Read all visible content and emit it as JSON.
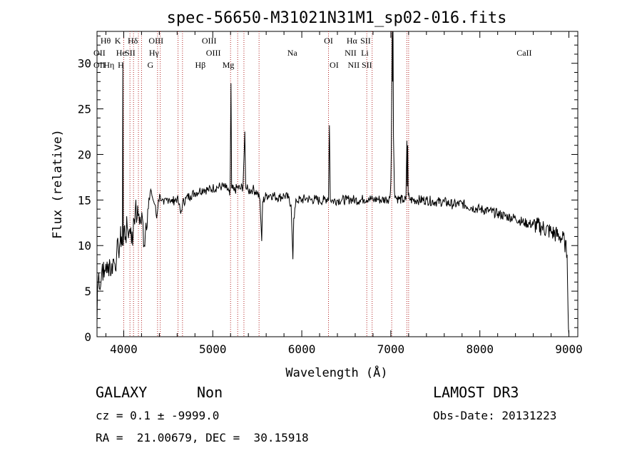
{
  "colors": {
    "line": "#000000",
    "marker": "#b22222",
    "background": "#ffffff"
  },
  "chart_data": {
    "type": "line",
    "title": "spec-56650-M31021N31M1_sp02-016.fits",
    "xlabel": "Wavelength (Å)",
    "ylabel": "Flux (relative)",
    "xlim": [
      3700,
      9100
    ],
    "ylim": [
      0,
      33.5
    ],
    "xticks": [
      4000,
      5000,
      6000,
      7000,
      8000,
      9000
    ],
    "yticks": [
      0,
      5,
      10,
      15,
      20,
      25,
      30
    ],
    "spectrum_points": [
      [
        3700,
        1.5
      ],
      [
        3705,
        5
      ],
      [
        3720,
        7
      ],
      [
        3740,
        5.5
      ],
      [
        3760,
        8
      ],
      [
        3780,
        6.5
      ],
      [
        3800,
        8
      ],
      [
        3820,
        7
      ],
      [
        3840,
        8.5
      ],
      [
        3860,
        7
      ],
      [
        3880,
        8.5
      ],
      [
        3900,
        8
      ],
      [
        3920,
        9
      ],
      [
        3940,
        9.5
      ],
      [
        3960,
        10.5
      ],
      [
        3975,
        11
      ],
      [
        3985,
        10
      ],
      [
        3990,
        30
      ],
      [
        3996,
        10
      ],
      [
        4005,
        12
      ],
      [
        4020,
        11
      ],
      [
        4040,
        12
      ],
      [
        4060,
        11.5
      ],
      [
        4080,
        12
      ],
      [
        4100,
        10
      ],
      [
        4110,
        13
      ],
      [
        4130,
        14
      ],
      [
        4150,
        13
      ],
      [
        4170,
        13.5
      ],
      [
        4190,
        12.5
      ],
      [
        4210,
        13
      ],
      [
        4230,
        10
      ],
      [
        4250,
        12.5
      ],
      [
        4270,
        14
      ],
      [
        4290,
        15
      ],
      [
        4310,
        16
      ],
      [
        4330,
        15
      ],
      [
        4350,
        14.5
      ],
      [
        4370,
        13
      ],
      [
        4390,
        15
      ],
      [
        4410,
        15.5
      ],
      [
        4430,
        15
      ],
      [
        4450,
        14.5
      ],
      [
        4480,
        15
      ],
      [
        4510,
        15.2
      ],
      [
        4540,
        14.8
      ],
      [
        4570,
        15
      ],
      [
        4600,
        15.2
      ],
      [
        4620,
        14.5
      ],
      [
        4640,
        13.5
      ],
      [
        4660,
        14.6
      ],
      [
        4700,
        15.2
      ],
      [
        4750,
        15.5
      ],
      [
        4800,
        15.8
      ],
      [
        4850,
        16
      ],
      [
        4900,
        16.2
      ],
      [
        4950,
        16.1
      ],
      [
        5000,
        16.3
      ],
      [
        5050,
        16.4
      ],
      [
        5100,
        16.5
      ],
      [
        5150,
        16.3
      ],
      [
        5180,
        16
      ],
      [
        5190,
        15.5
      ],
      [
        5195,
        16.2
      ],
      [
        5205,
        27.8
      ],
      [
        5212,
        16.3
      ],
      [
        5240,
        16
      ],
      [
        5280,
        16.4
      ],
      [
        5310,
        16.2
      ],
      [
        5340,
        16.5
      ],
      [
        5360,
        22.5
      ],
      [
        5370,
        16.4
      ],
      [
        5400,
        16
      ],
      [
        5450,
        16.2
      ],
      [
        5500,
        15.8
      ],
      [
        5530,
        15
      ],
      [
        5550,
        10.5
      ],
      [
        5560,
        14.8
      ],
      [
        5600,
        15.5
      ],
      [
        5650,
        15.6
      ],
      [
        5700,
        15.4
      ],
      [
        5750,
        15.3
      ],
      [
        5800,
        15.5
      ],
      [
        5850,
        15.2
      ],
      [
        5880,
        14.5
      ],
      [
        5900,
        8.5
      ],
      [
        5910,
        13
      ],
      [
        5940,
        15
      ],
      [
        6000,
        15
      ],
      [
        6050,
        15.2
      ],
      [
        6100,
        15
      ],
      [
        6150,
        15.1
      ],
      [
        6200,
        14.9
      ],
      [
        6250,
        15
      ],
      [
        6290,
        15.2
      ],
      [
        6300,
        15
      ],
      [
        6310,
        23.2
      ],
      [
        6320,
        15.1
      ],
      [
        6350,
        14.9
      ],
      [
        6400,
        15
      ],
      [
        6450,
        15
      ],
      [
        6500,
        15
      ],
      [
        6550,
        15.1
      ],
      [
        6600,
        15
      ],
      [
        6650,
        15
      ],
      [
        6700,
        15.1
      ],
      [
        6750,
        15.2
      ],
      [
        6800,
        15
      ],
      [
        6850,
        15.1
      ],
      [
        6900,
        15
      ],
      [
        6950,
        15.1
      ],
      [
        6990,
        15.2
      ],
      [
        7000,
        17
      ],
      [
        7005,
        20
      ],
      [
        7010,
        26
      ],
      [
        7015,
        34
      ],
      [
        7020,
        28
      ],
      [
        7025,
        34
      ],
      [
        7030,
        22
      ],
      [
        7040,
        16
      ],
      [
        7060,
        15.2
      ],
      [
        7100,
        15.1
      ],
      [
        7140,
        15
      ],
      [
        7170,
        15
      ],
      [
        7180,
        21.5
      ],
      [
        7185,
        16.5
      ],
      [
        7190,
        21
      ],
      [
        7195,
        15.5
      ],
      [
        7220,
        15
      ],
      [
        7300,
        15
      ],
      [
        7400,
        15
      ],
      [
        7500,
        14.8
      ],
      [
        7600,
        14.8
      ],
      [
        7700,
        14.5
      ],
      [
        7800,
        14.6
      ],
      [
        7900,
        14.2
      ],
      [
        8000,
        14
      ],
      [
        8100,
        13.8
      ],
      [
        8200,
        13.5
      ],
      [
        8300,
        13.2
      ],
      [
        8400,
        13
      ],
      [
        8500,
        12.5
      ],
      [
        8600,
        12.3
      ],
      [
        8700,
        12
      ],
      [
        8800,
        11.5
      ],
      [
        8900,
        11
      ],
      [
        8950,
        10.5
      ],
      [
        8980,
        9
      ],
      [
        8990,
        3
      ],
      [
        9000,
        0.3
      ]
    ],
    "line_markers": [
      {
        "label": "OII",
        "wavelength": 3727,
        "row": 2
      },
      {
        "label": "OII",
        "wavelength": 3727,
        "row": 3
      },
      {
        "label": "Hθ",
        "wavelength": 3797,
        "row": 1
      },
      {
        "label": "Hη",
        "wavelength": 3835,
        "row": 3
      },
      {
        "label": "K",
        "wavelength": 3933,
        "row": 1
      },
      {
        "label": "He",
        "wavelength": 3970,
        "row": 2
      },
      {
        "label": "H",
        "wavelength": 3968,
        "row": 3
      },
      {
        "label": "Hδ",
        "wavelength": 4102,
        "row": 1
      },
      {
        "label": "SII",
        "wavelength": 4072,
        "row": 2
      },
      {
        "label": "OIII",
        "wavelength": 4363,
        "row": 1
      },
      {
        "label": "Hγ",
        "wavelength": 4340,
        "row": 2
      },
      {
        "label": "G",
        "wavelength": 4300,
        "row": 3
      },
      {
        "label": "Hβ",
        "wavelength": 4861,
        "row": 3
      },
      {
        "label": "OIII",
        "wavelength": 4959,
        "row": 1
      },
      {
        "label": "OIII",
        "wavelength": 5007,
        "row": 2
      },
      {
        "label": "Mg",
        "wavelength": 5175,
        "row": 3
      },
      {
        "label": "Na",
        "wavelength": 5893,
        "row": 2
      },
      {
        "label": "OI",
        "wavelength": 6300,
        "row": 1
      },
      {
        "label": "OI",
        "wavelength": 6363,
        "row": 3
      },
      {
        "label": "Hα",
        "wavelength": 6563,
        "row": 1
      },
      {
        "label": "NII",
        "wavelength": 6548,
        "row": 2
      },
      {
        "label": "NII",
        "wavelength": 6583,
        "row": 3
      },
      {
        "label": "SII",
        "wavelength": 6716,
        "row": 1
      },
      {
        "label": "Li",
        "wavelength": 6708,
        "row": 2
      },
      {
        "label": "SII",
        "wavelength": 6731,
        "row": 3
      },
      {
        "label": "CaII",
        "wavelength": 8498,
        "row": 2
      }
    ],
    "vlines": [
      4000,
      4070,
      4110,
      4165,
      4200,
      4380,
      4410,
      4610,
      4660,
      5200,
      5280,
      5350,
      5520,
      6300,
      6730,
      6790,
      7010,
      7180,
      7200
    ]
  },
  "info": {
    "class_text": "GALAXY",
    "subclass_text": "Non",
    "cz_text": "cz = 0.1 ± -9999.0",
    "radec_text": "RA =  21.00679, DEC =  30.15918",
    "survey_text": "LAMOST DR3",
    "obsdate_text": "Obs-Date: 20131223"
  }
}
